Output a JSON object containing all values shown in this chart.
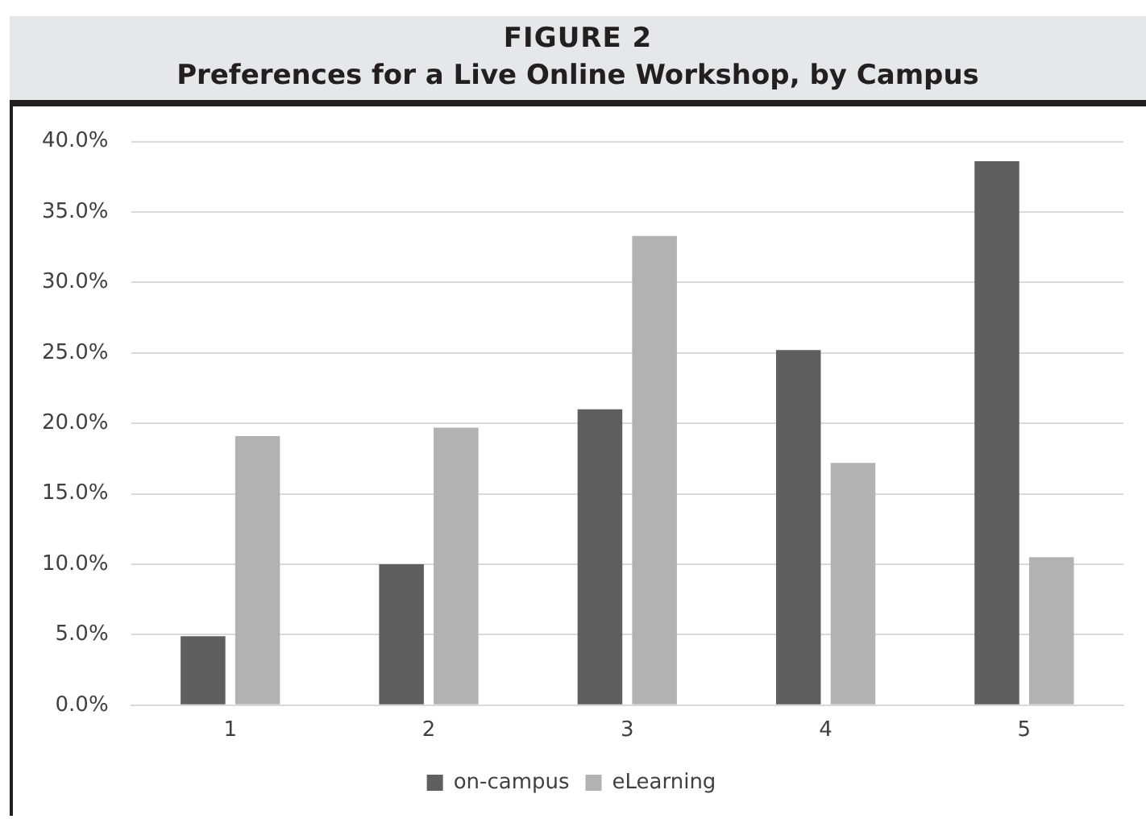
{
  "chart_data": {
    "type": "bar",
    "title": "FIGURE 2",
    "subtitle": "Preferences for a Live Online Workshop, by Campus",
    "categories": [
      "1",
      "2",
      "3",
      "4",
      "5"
    ],
    "series": [
      {
        "name": "on-campus",
        "color": "#5f5f5f",
        "values": [
          4.9,
          10.0,
          21.0,
          25.2,
          38.6
        ]
      },
      {
        "name": "eLearning",
        "color": "#b2b2b2",
        "values": [
          19.1,
          19.7,
          33.3,
          17.2,
          10.5
        ]
      }
    ],
    "ylim": [
      0,
      40
    ],
    "yticks": [
      {
        "value": 0,
        "label": "0.0%"
      },
      {
        "value": 5,
        "label": "5.0%"
      },
      {
        "value": 10,
        "label": "10.0%"
      },
      {
        "value": 15,
        "label": "15.0%"
      },
      {
        "value": 20,
        "label": "20.0%"
      },
      {
        "value": 25,
        "label": "25.0%"
      },
      {
        "value": 30,
        "label": "30.0%"
      },
      {
        "value": 35,
        "label": "35.0%"
      },
      {
        "value": 40,
        "label": "40.0%"
      }
    ],
    "grid": "y",
    "legend": "bottom"
  }
}
